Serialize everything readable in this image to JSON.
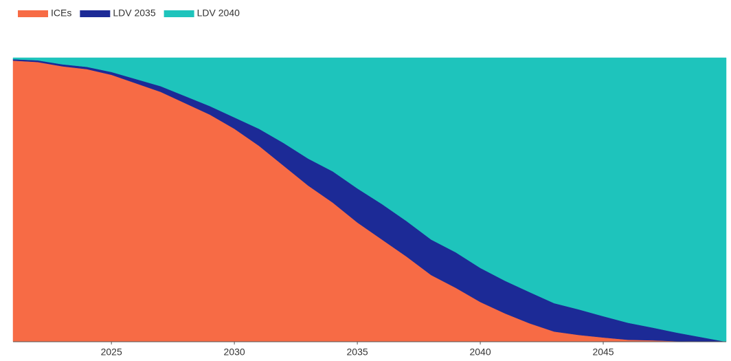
{
  "chart_data": {
    "type": "stacked_area",
    "x": [
      2021,
      2022,
      2023,
      2024,
      2025,
      2026,
      2027,
      2028,
      2029,
      2030,
      2031,
      2032,
      2033,
      2034,
      2035,
      2036,
      2037,
      2038,
      2039,
      2040,
      2041,
      2042,
      2043,
      2044,
      2045,
      2046,
      2047,
      2048,
      2049,
      2050
    ],
    "series": [
      {
        "name": "ICEs",
        "color": "#f76b45",
        "values": [
          99,
          98.5,
          97,
          96,
          94,
          91,
          88,
          84,
          80,
          75,
          69,
          62,
          55,
          49,
          42,
          36,
          30,
          23.5,
          19,
          14,
          10,
          6.5,
          3.6,
          2.4,
          1.5,
          0.7,
          0.5,
          0.2,
          0.1,
          0
        ]
      },
      {
        "name": "LDV 2035",
        "color": "#1c2a96",
        "values": [
          0.5,
          0.6,
          0.7,
          0.8,
          1,
          1.5,
          2,
          2.5,
          3,
          4,
          6,
          8,
          9.5,
          11,
          12,
          12.5,
          12.5,
          12.5,
          12.5,
          12,
          11.5,
          11,
          10,
          9,
          7.5,
          6,
          4.5,
          3,
          1.5,
          0
        ]
      },
      {
        "name": "LDV 2040",
        "color": "#1ec4bc",
        "values": [
          0.5,
          0.9,
          2.3,
          3.2,
          5,
          7.5,
          10,
          13.5,
          17,
          21,
          25,
          30,
          35.5,
          40,
          46,
          51.5,
          57.5,
          64,
          68.5,
          74,
          78.5,
          82.5,
          86.4,
          88.6,
          91,
          93.3,
          95,
          96.8,
          98.4,
          100
        ]
      }
    ],
    "xlim": [
      2021,
      2050
    ],
    "xticks": [
      2025,
      2030,
      2035,
      2040,
      2045
    ],
    "ylim": [
      0,
      100
    ]
  }
}
